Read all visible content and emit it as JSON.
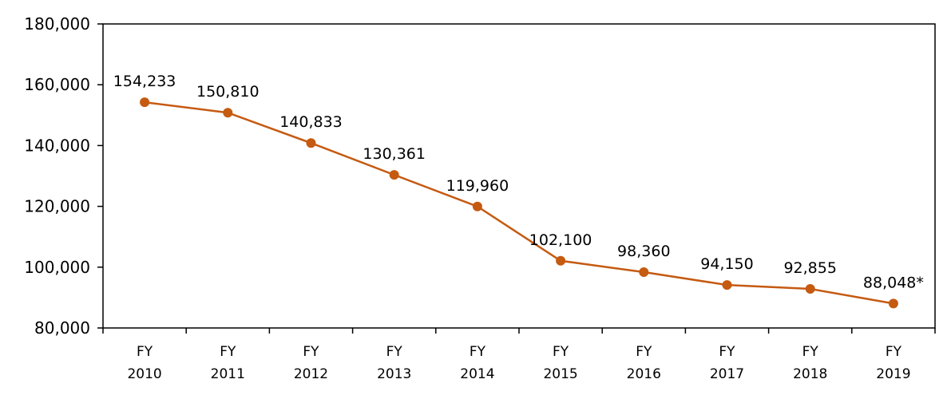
{
  "chart_data": {
    "type": "line",
    "title": "",
    "xlabel": "",
    "ylabel": "",
    "categories": [
      [
        "FY",
        "2010"
      ],
      [
        "FY",
        "2011"
      ],
      [
        "FY",
        "2012"
      ],
      [
        "FY",
        "2013"
      ],
      [
        "FY",
        "2014"
      ],
      [
        "FY",
        "2015"
      ],
      [
        "FY",
        "2016"
      ],
      [
        "FY",
        "2017"
      ],
      [
        "FY",
        "2018"
      ],
      [
        "FY",
        "2019"
      ]
    ],
    "series": [
      {
        "name": "",
        "color": "#C55A11",
        "values": [
          154233,
          150810,
          140833,
          130361,
          119960,
          102100,
          98360,
          94150,
          92855,
          88048
        ],
        "labels": [
          "154,233",
          "150,810",
          "140,833",
          "130,361",
          "119,960",
          "102,100",
          "98,360",
          "94,150",
          "92,855",
          "88,048*"
        ]
      }
    ],
    "ylim": [
      80000,
      180000
    ],
    "yticks": [
      80000,
      100000,
      120000,
      140000,
      160000,
      180000
    ],
    "ytick_labels": [
      "80,000",
      "100,000",
      "120,000",
      "140,000",
      "160,000",
      "180,000"
    ],
    "grid": false,
    "legend": "none"
  }
}
